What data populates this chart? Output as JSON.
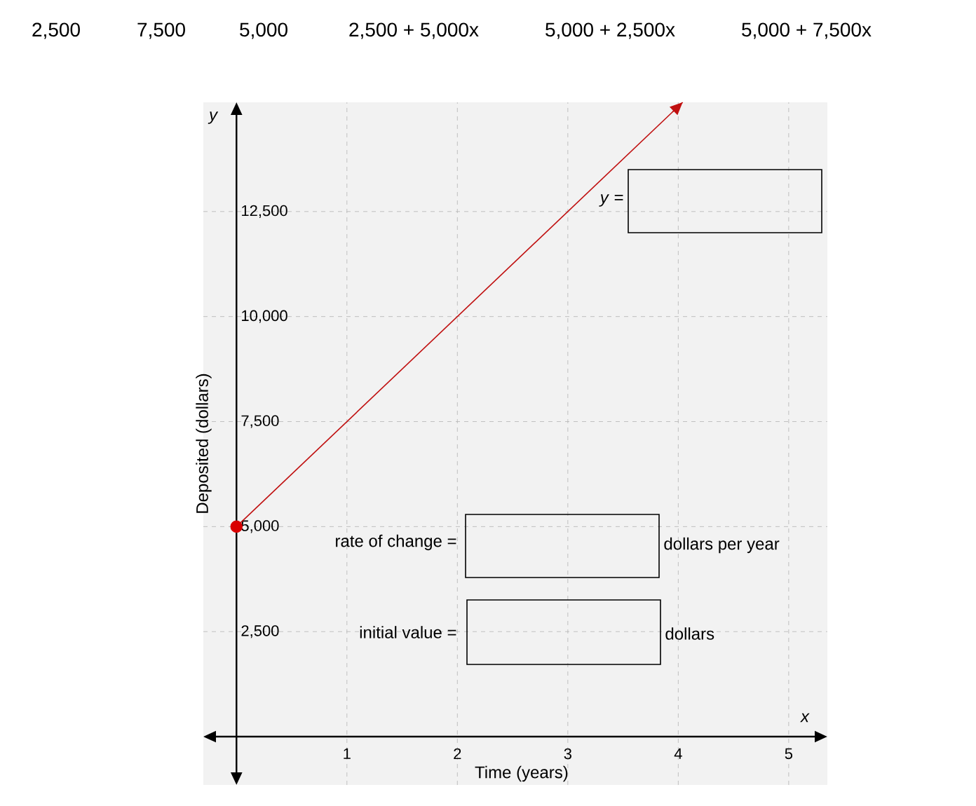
{
  "chart_data": {
    "type": "line",
    "xlabel": "Time (years)",
    "ylabel": "Deposited (dollars)",
    "xlim": [
      -0.3,
      5.35
    ],
    "ylim": [
      -1150,
      15100
    ],
    "xticks": [
      1,
      2,
      3,
      4,
      5
    ],
    "yticks": [
      {
        "value": 2500,
        "label": "2,500"
      },
      {
        "value": 5000,
        "label": "5,000"
      },
      {
        "value": 7500,
        "label": "7,500"
      },
      {
        "value": 10000,
        "label": "10,000"
      },
      {
        "value": 12500,
        "label": "12,500"
      }
    ],
    "grid": true,
    "series": [
      {
        "type": "line",
        "color": "#c01010",
        "x": [
          0,
          4.04
        ],
        "values": [
          5000,
          15100
        ],
        "marker": "circle"
      }
    ],
    "annotations": [
      "2,500",
      "7,500",
      "5,000",
      "2,500 + 5,000x",
      "5,000 + 2,500x",
      "5,000 + 7,500x",
      "x",
      "y",
      "*y* =",
      "rate of change =",
      "dollars per year",
      "initial value =",
      "dollars"
    ]
  }
}
